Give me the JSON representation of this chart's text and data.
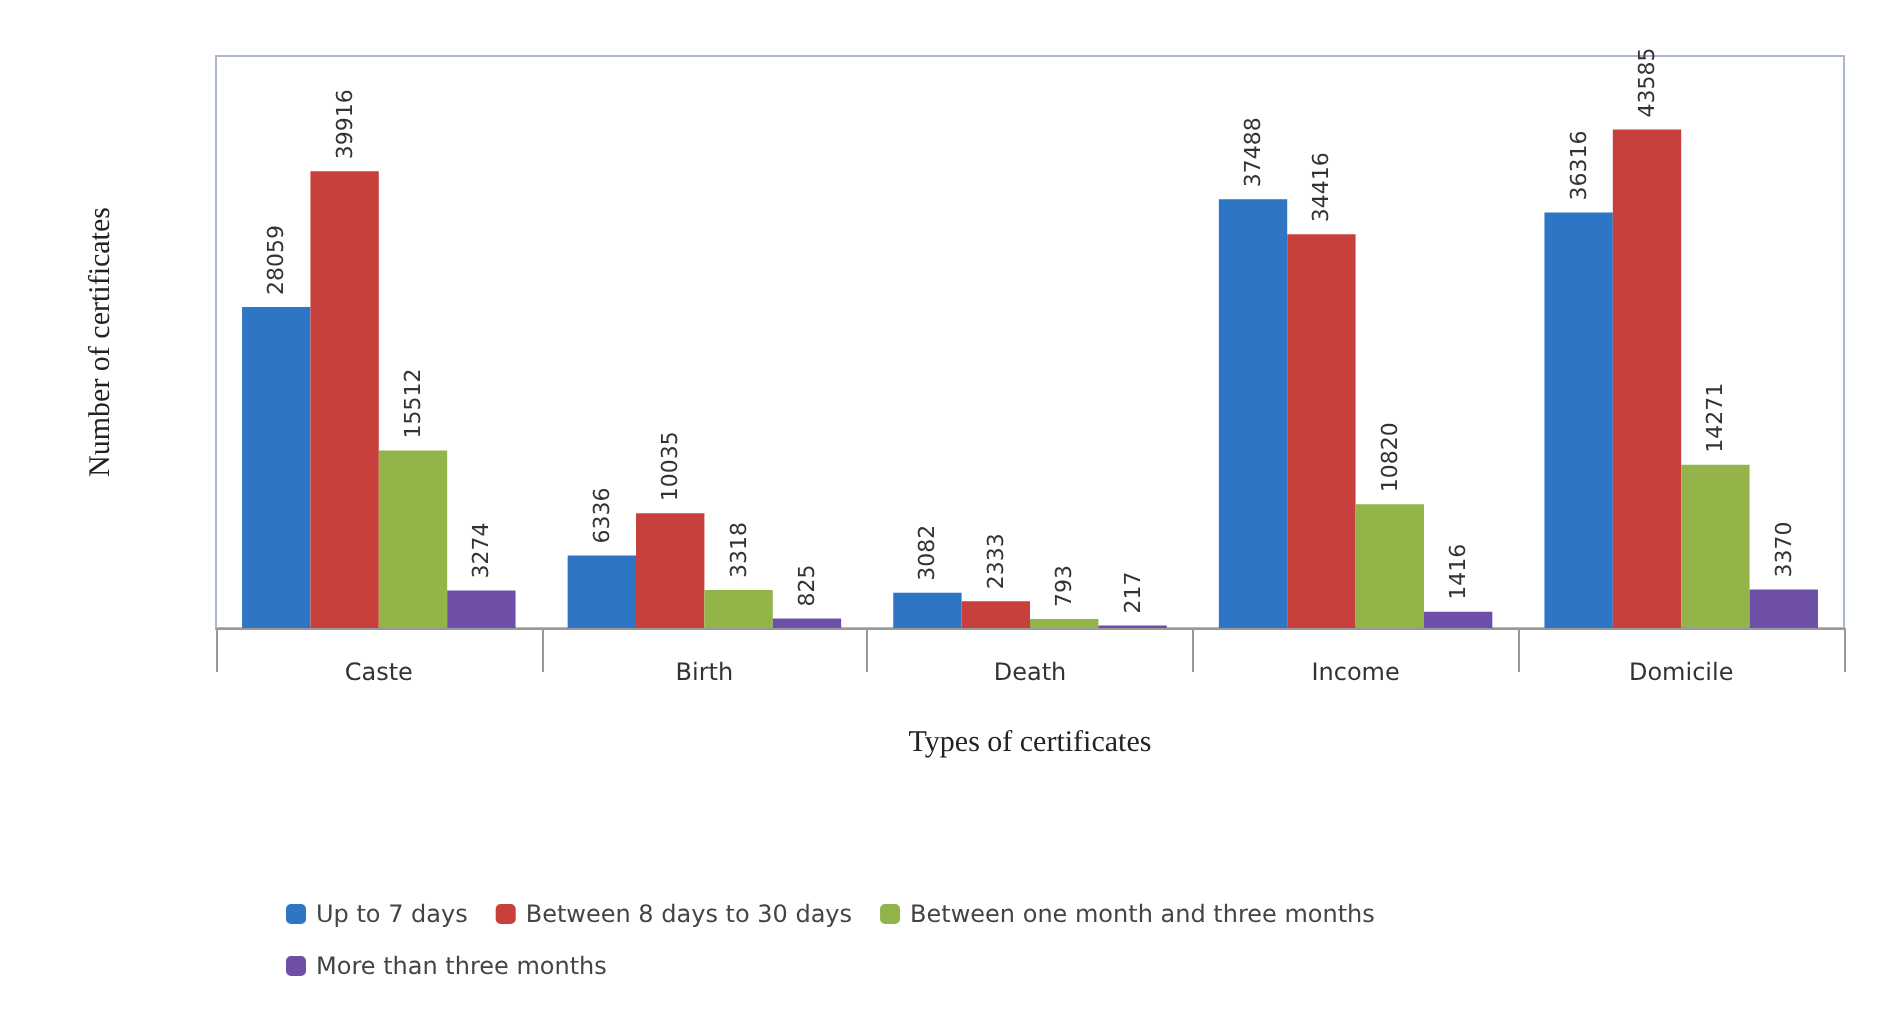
{
  "chart_data": {
    "type": "bar",
    "xlabel": "Types of certificates",
    "ylabel": "Number of certificates",
    "categories": [
      "Caste",
      "Birth",
      "Death",
      "Income",
      "Domicile"
    ],
    "series": [
      {
        "name": "Up to 7 days",
        "color": "#2e75c6",
        "values": [
          28059,
          6336,
          3082,
          37488,
          36316
        ]
      },
      {
        "name": "Between 8 days to 30 days",
        "color": "#c8403c",
        "values": [
          39916,
          10035,
          2333,
          34416,
          43585
        ]
      },
      {
        "name": "Between one month and three months",
        "color": "#92b449",
        "values": [
          15512,
          3318,
          793,
          10820,
          14271
        ]
      },
      {
        "name": "More than three months",
        "color": "#6d4fa8",
        "values": [
          3274,
          825,
          217,
          1416,
          3370
        ]
      }
    ],
    "data_labels": true,
    "grid": false,
    "legend": "bottom"
  }
}
